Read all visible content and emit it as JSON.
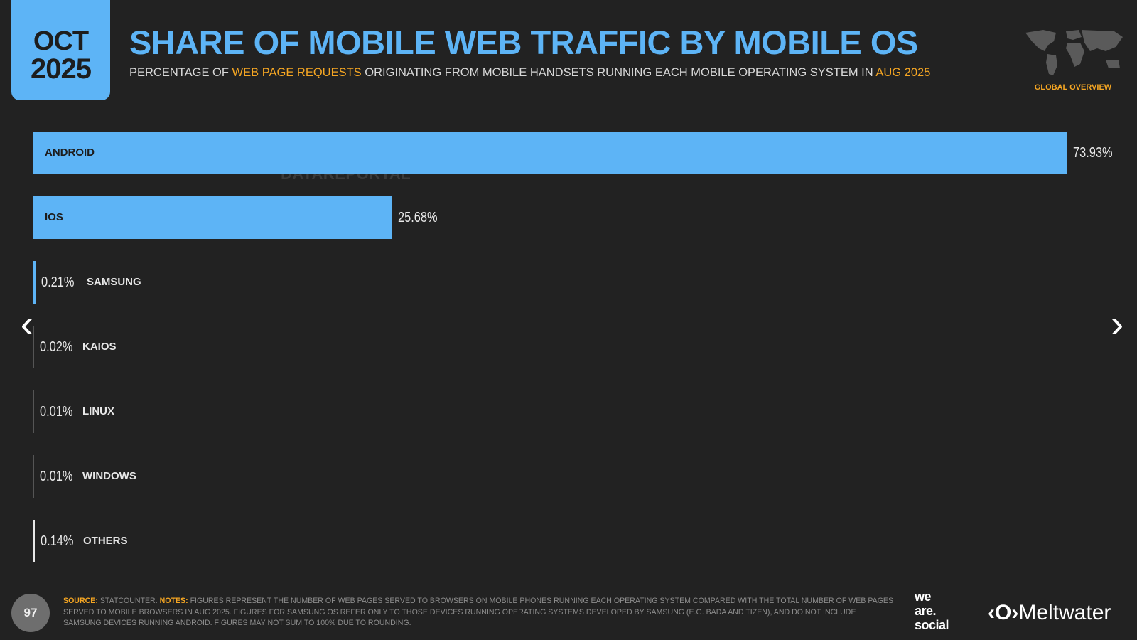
{
  "date_badge": {
    "month": "OCT",
    "year": "2025"
  },
  "header": {
    "title": "SHARE OF MOBILE WEB TRAFFIC BY MOBILE OS",
    "subtitle_parts": [
      "PERCENTAGE OF ",
      "WEB PAGE REQUESTS",
      " ORIGINATING FROM MOBILE HANDSETS RUNNING EACH MOBILE OPERATING SYSTEM IN ",
      "AUG 2025"
    ],
    "badge": "GLOBAL OVERVIEW"
  },
  "watermark": "DATAREPORTAL",
  "colors": {
    "background": "#222222",
    "bar": "#5db4f6",
    "accent": "#f5a623"
  },
  "chart_data": {
    "type": "bar",
    "orientation": "horizontal",
    "categories": [
      "ANDROID",
      "IOS",
      "SAMSUNG",
      "KAIOS",
      "LINUX",
      "WINDOWS",
      "OTHERS"
    ],
    "values": [
      73.93,
      25.68,
      0.21,
      0.02,
      0.01,
      0.01,
      0.14
    ],
    "labels": [
      "73.93%",
      "25.68%",
      "0.21%",
      "0.02%",
      "0.01%",
      "0.01%",
      "0.14%"
    ],
    "unit": "%",
    "xlim": [
      0,
      73.93
    ]
  },
  "nav": {
    "prev": "previous-slide",
    "next": "next-slide"
  },
  "footer": {
    "page_number": "97",
    "source_label": "SOURCE:",
    "source": "STATCOUNTER.",
    "notes_label": "NOTES:",
    "notes": "FIGURES REPRESENT THE NUMBER OF WEB PAGES SERVED TO BROWSERS ON MOBILE PHONES RUNNING EACH OPERATING SYSTEM COMPARED WITH THE TOTAL NUMBER OF WEB PAGES SERVED TO MOBILE BROWSERS IN AUG 2025. FIGURES FOR SAMSUNG OS REFER ONLY TO THOSE DEVICES RUNNING OPERATING SYSTEMS DEVELOPED BY SAMSUNG (E.G. BADA AND TIZEN), AND DO NOT INCLUDE SAMSUNG DEVICES RUNNING ANDROID. FIGURES MAY NOT SUM TO 100% DUE TO ROUNDING.",
    "logo1": [
      "we",
      "are.",
      "social"
    ],
    "logo2": "Meltwater"
  }
}
